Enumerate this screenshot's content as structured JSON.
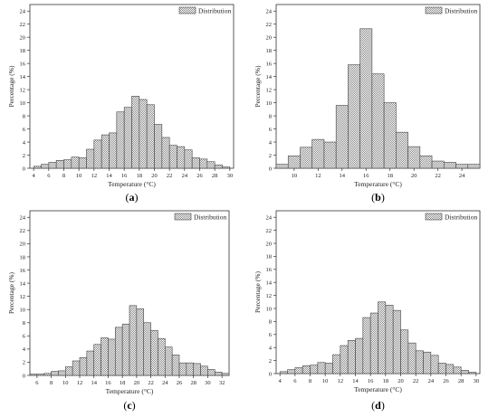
{
  "chart_data": [
    {
      "id": "a",
      "panel_label": "a",
      "type": "bar",
      "legend": "Distribution",
      "legend_position": "top-right",
      "xlabel": "Temperature (°C)",
      "ylabel": "Percentage (%)",
      "xlim": [
        3.5,
        30.5
      ],
      "ylim": [
        0,
        25
      ],
      "xticks": [
        4,
        6,
        8,
        10,
        12,
        14,
        16,
        18,
        20,
        22,
        24,
        26,
        28,
        30
      ],
      "yticks": [
        0,
        2,
        4,
        6,
        8,
        10,
        12,
        14,
        16,
        18,
        20,
        22,
        24
      ],
      "bar_width": 1,
      "x": [
        4.5,
        5.5,
        6.5,
        7.5,
        8.5,
        9.5,
        10.5,
        11.5,
        12.5,
        13.5,
        14.5,
        15.5,
        16.5,
        17.5,
        18.5,
        19.5,
        20.5,
        21.5,
        22.5,
        23.5,
        24.5,
        25.5,
        26.5,
        27.5,
        28.5,
        29.5
      ],
      "values": [
        0.3,
        0.6,
        0.9,
        1.2,
        1.3,
        1.7,
        1.6,
        2.9,
        4.3,
        5.1,
        5.4,
        8.6,
        9.3,
        11.0,
        10.5,
        9.7,
        6.7,
        4.7,
        3.5,
        3.3,
        2.8,
        1.6,
        1.4,
        1.0,
        0.5,
        0.2
      ]
    },
    {
      "id": "b",
      "panel_label": "b",
      "type": "bar",
      "legend": "Distribution",
      "legend_position": "top-right",
      "xlabel": "Temperature (°C)",
      "ylabel": "Percentage (%)",
      "xlim": [
        8.5,
        25.5
      ],
      "ylim": [
        0,
        25
      ],
      "xticks": [
        10,
        12,
        14,
        16,
        18,
        20,
        22,
        24
      ],
      "yticks": [
        0,
        2,
        4,
        6,
        8,
        10,
        12,
        14,
        16,
        18,
        20,
        22,
        24
      ],
      "bar_width": 1,
      "x": [
        9,
        10,
        11,
        12,
        13,
        14,
        15,
        16,
        17,
        18,
        19,
        20,
        21,
        22,
        23,
        24,
        25
      ],
      "values": [
        0.6,
        1.9,
        3.2,
        4.4,
        4.0,
        9.6,
        15.8,
        21.3,
        14.4,
        10.0,
        5.5,
        3.3,
        1.9,
        1.1,
        0.9,
        0.6,
        0.6
      ]
    },
    {
      "id": "c",
      "panel_label": "c",
      "type": "bar",
      "legend": "Distribution",
      "legend_position": "top-right",
      "xlabel": "Temperature (°C)",
      "ylabel": "Percentage (%)",
      "xlim": [
        5,
        33
      ],
      "ylim": [
        0,
        25
      ],
      "xticks": [
        6,
        8,
        10,
        12,
        14,
        16,
        18,
        20,
        22,
        24,
        26,
        28,
        30,
        32
      ],
      "yticks": [
        0,
        2,
        4,
        6,
        8,
        10,
        12,
        14,
        16,
        18,
        20,
        22,
        24
      ],
      "bar_width": 1,
      "x": [
        5.5,
        6.5,
        7.5,
        8.5,
        9.5,
        10.5,
        11.5,
        12.5,
        13.5,
        14.5,
        15.5,
        16.5,
        17.5,
        18.5,
        19.5,
        20.5,
        21.5,
        22.5,
        23.5,
        24.5,
        25.5,
        26.5,
        27.5,
        28.5,
        29.5,
        30.5,
        31.5,
        32.5
      ],
      "values": [
        0.2,
        0.2,
        0.3,
        0.6,
        0.7,
        1.3,
        2.2,
        2.7,
        3.7,
        4.7,
        5.7,
        5.5,
        7.3,
        7.8,
        10.6,
        10.1,
        8.0,
        6.8,
        5.6,
        4.3,
        3.1,
        1.9,
        1.9,
        1.8,
        1.4,
        0.9,
        0.5,
        0.3
      ]
    },
    {
      "id": "d",
      "panel_label": "d",
      "type": "bar",
      "legend": "Distribution",
      "legend_position": "top-right",
      "xlabel": "Temperature (°C)",
      "ylabel": "Percentage (%)",
      "xlim": [
        3.5,
        30.5
      ],
      "ylim": [
        0,
        25
      ],
      "xticks": [
        4,
        6,
        8,
        10,
        12,
        14,
        16,
        18,
        20,
        22,
        24,
        26,
        28,
        30
      ],
      "yticks": [
        0,
        2,
        4,
        6,
        8,
        10,
        12,
        14,
        16,
        18,
        20,
        22,
        24
      ],
      "bar_width": 1,
      "x": [
        4.5,
        5.5,
        6.5,
        7.5,
        8.5,
        9.5,
        10.5,
        11.5,
        12.5,
        13.5,
        14.5,
        15.5,
        16.5,
        17.5,
        18.5,
        19.5,
        20.5,
        21.5,
        22.5,
        23.5,
        24.5,
        25.5,
        26.5,
        27.5,
        28.5,
        29.5
      ],
      "values": [
        0.3,
        0.6,
        0.9,
        1.2,
        1.3,
        1.7,
        1.6,
        2.9,
        4.3,
        5.1,
        5.4,
        8.6,
        9.3,
        11.0,
        10.5,
        9.7,
        6.7,
        4.7,
        3.5,
        3.3,
        2.8,
        1.6,
        1.4,
        1.0,
        0.5,
        0.2
      ]
    }
  ]
}
